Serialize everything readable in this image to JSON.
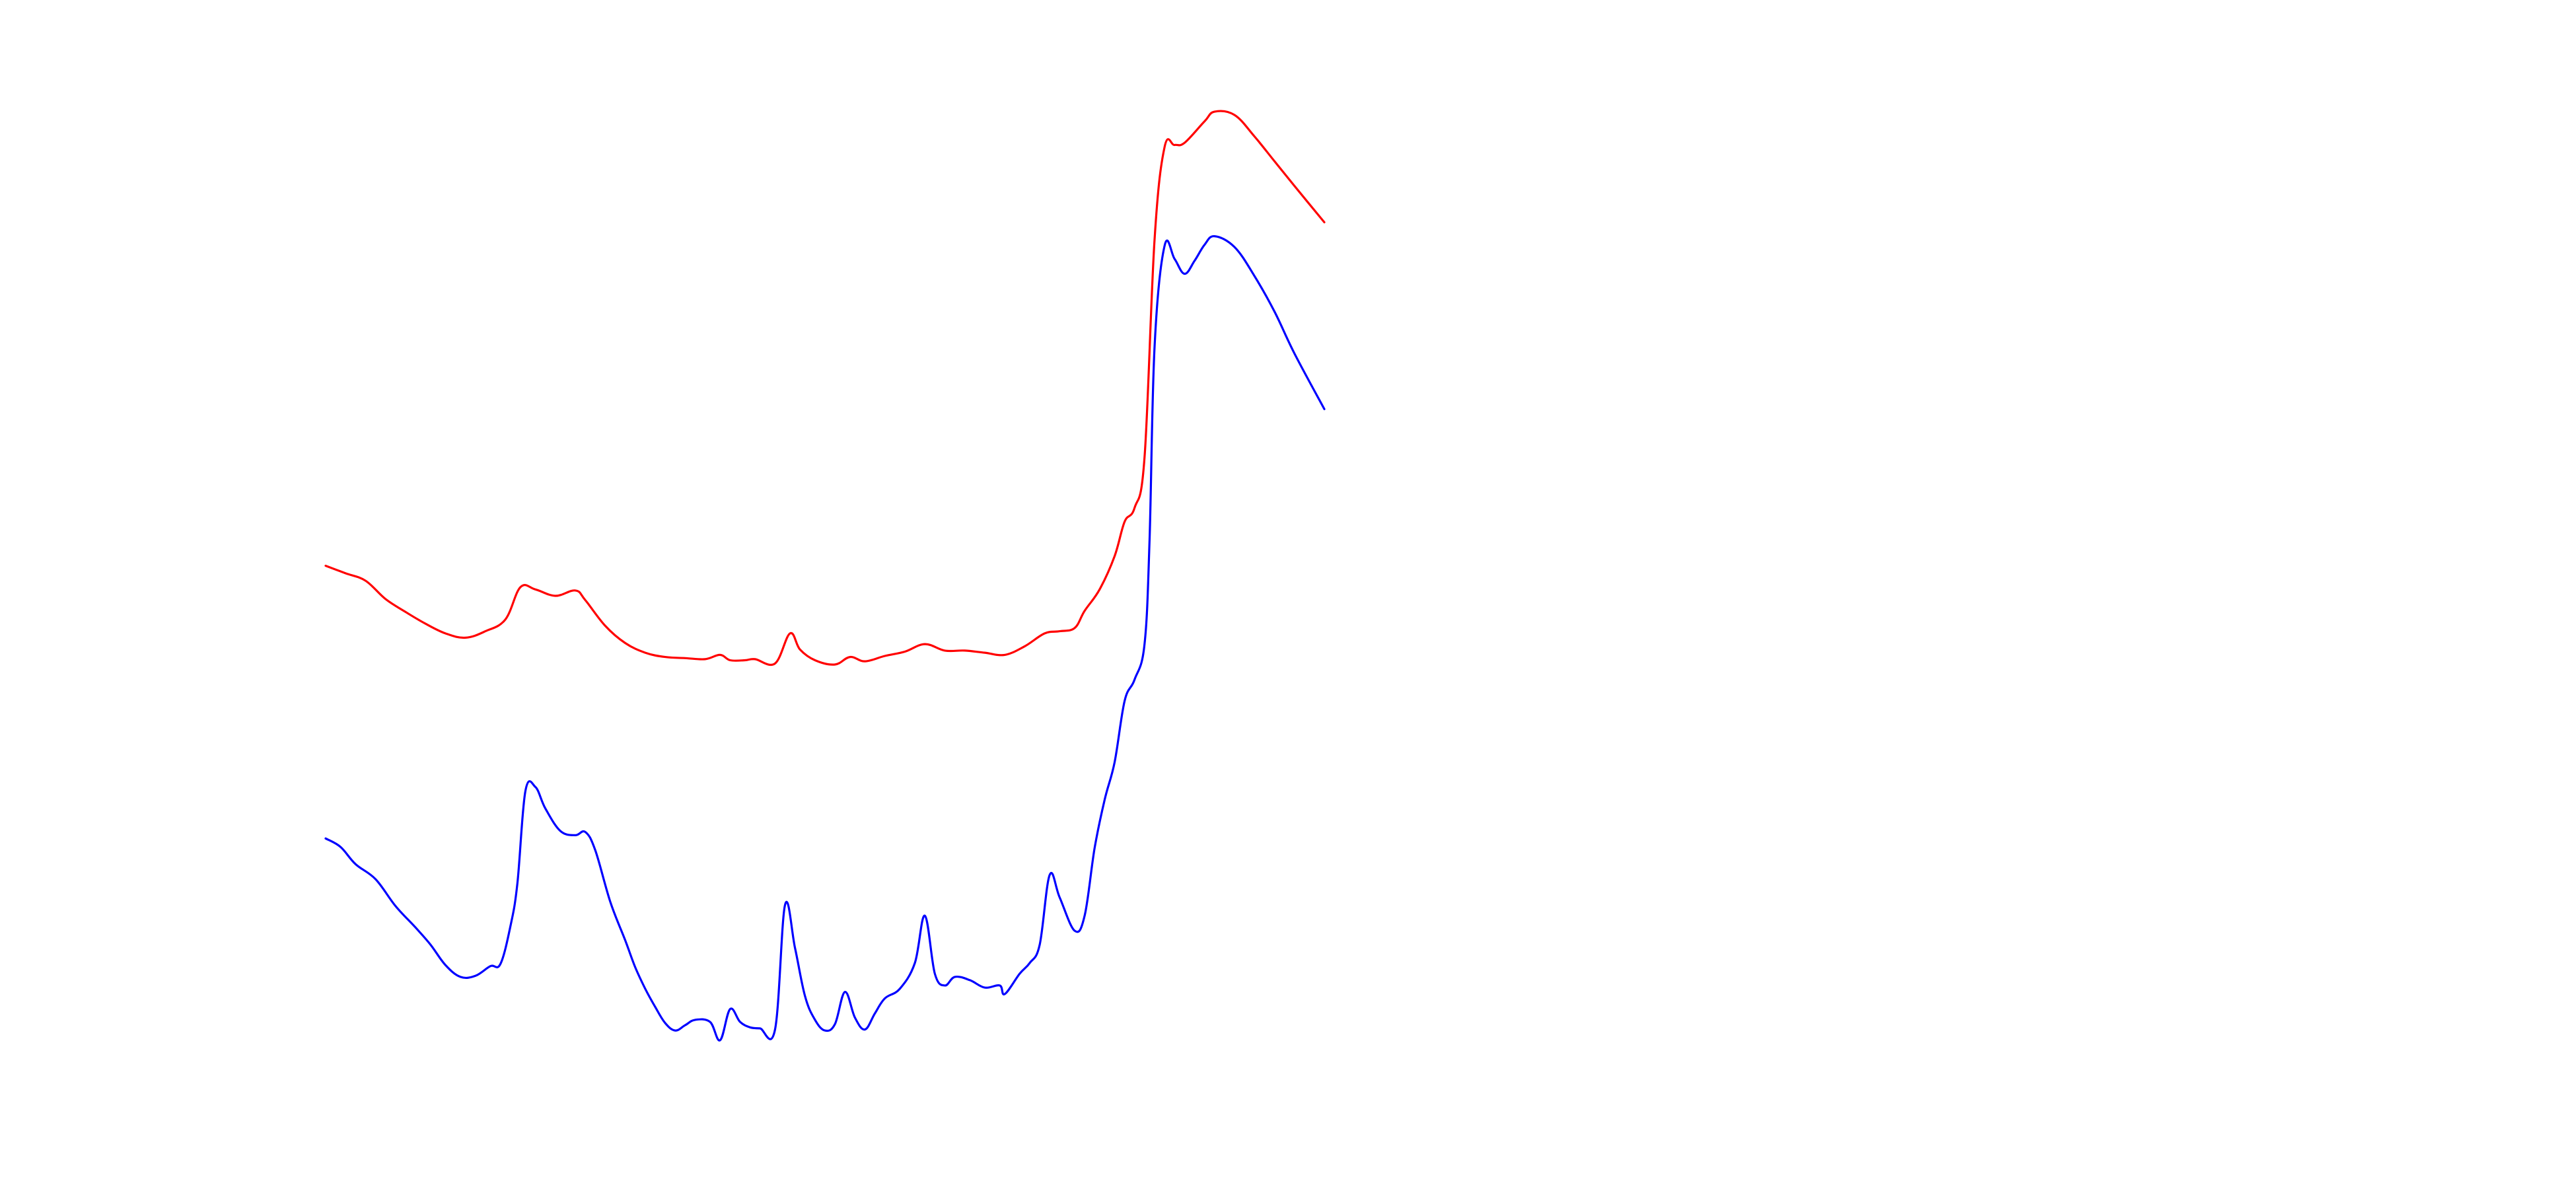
{
  "chart_data": {
    "type": "line",
    "title": "",
    "xlabel": "",
    "ylabel": "",
    "grid": false,
    "legend": "none",
    "axes_visible": false,
    "xlim": [
      0,
      100
    ],
    "ylim": [
      0,
      100
    ],
    "series": [
      {
        "color": "#ff0000",
        "points": [
          [
            0.0,
            59.6
          ],
          [
            2.0,
            58.9
          ],
          [
            4.0,
            58.2
          ],
          [
            6.0,
            56.5
          ],
          [
            8.0,
            55.3
          ],
          [
            10.0,
            54.2
          ],
          [
            12.0,
            53.3
          ],
          [
            14.0,
            52.9
          ],
          [
            16.0,
            53.5
          ],
          [
            18.0,
            54.6
          ],
          [
            19.5,
            57.6
          ],
          [
            21.0,
            57.4
          ],
          [
            23.0,
            56.8
          ],
          [
            25.0,
            57.3
          ],
          [
            26.0,
            56.4
          ],
          [
            28.0,
            54.0
          ],
          [
            30.0,
            52.4
          ],
          [
            32.0,
            51.5
          ],
          [
            34.0,
            51.1
          ],
          [
            36.0,
            51.0
          ],
          [
            38.0,
            50.9
          ],
          [
            39.5,
            51.3
          ],
          [
            40.5,
            50.8
          ],
          [
            42.0,
            50.8
          ],
          [
            43.0,
            50.9
          ],
          [
            45.0,
            50.5
          ],
          [
            46.5,
            53.3
          ],
          [
            47.5,
            51.8
          ],
          [
            49.0,
            50.8
          ],
          [
            51.0,
            50.4
          ],
          [
            52.5,
            51.1
          ],
          [
            54.0,
            50.7
          ],
          [
            56.0,
            51.2
          ],
          [
            58.0,
            51.6
          ],
          [
            60.0,
            52.3
          ],
          [
            62.0,
            51.7
          ],
          [
            64.0,
            51.7
          ],
          [
            66.0,
            51.5
          ],
          [
            68.0,
            51.3
          ],
          [
            70.0,
            52.1
          ],
          [
            72.0,
            53.3
          ],
          [
            73.5,
            53.5
          ],
          [
            75.0,
            53.8
          ],
          [
            76.0,
            55.4
          ],
          [
            77.5,
            57.4
          ],
          [
            79.0,
            60.5
          ],
          [
            80.0,
            63.7
          ],
          [
            81.0,
            65.0
          ],
          [
            82.0,
            69.7
          ],
          [
            83.0,
            90.0
          ],
          [
            84.0,
            98.6
          ],
          [
            85.0,
            98.8
          ],
          [
            86.0,
            99.0
          ],
          [
            88.0,
            101.0
          ],
          [
            89.0,
            101.9
          ],
          [
            91.0,
            101.6
          ],
          [
            93.0,
            99.6
          ],
          [
            95.0,
            97.3
          ],
          [
            97.0,
            95.0
          ],
          [
            100.0,
            91.6
          ]
        ]
      },
      {
        "color": "#0000ff",
        "points": [
          [
            0.0,
            34.2
          ],
          [
            1.5,
            33.4
          ],
          [
            3.0,
            31.8
          ],
          [
            5.0,
            30.4
          ],
          [
            7.0,
            27.9
          ],
          [
            9.0,
            25.9
          ],
          [
            10.5,
            24.3
          ],
          [
            12.0,
            22.4
          ],
          [
            13.5,
            21.3
          ],
          [
            15.0,
            21.4
          ],
          [
            16.5,
            22.3
          ],
          [
            17.5,
            22.5
          ],
          [
            18.5,
            26.0
          ],
          [
            19.2,
            30.0
          ],
          [
            20.0,
            38.6
          ],
          [
            21.0,
            39.0
          ],
          [
            22.0,
            37.0
          ],
          [
            23.5,
            34.9
          ],
          [
            25.0,
            34.5
          ],
          [
            26.0,
            34.8
          ],
          [
            27.0,
            33.1
          ],
          [
            28.5,
            28.3
          ],
          [
            30.0,
            24.7
          ],
          [
            31.0,
            22.2
          ],
          [
            32.0,
            20.2
          ],
          [
            33.0,
            18.5
          ],
          [
            34.0,
            17.0
          ],
          [
            35.0,
            16.3
          ],
          [
            36.0,
            16.8
          ],
          [
            37.0,
            17.3
          ],
          [
            38.5,
            17.1
          ],
          [
            39.5,
            15.4
          ],
          [
            40.5,
            18.3
          ],
          [
            41.5,
            17.1
          ],
          [
            42.5,
            16.6
          ],
          [
            43.5,
            16.5
          ],
          [
            45.0,
            16.4
          ],
          [
            46.0,
            28.0
          ],
          [
            47.0,
            24.0
          ],
          [
            48.0,
            19.5
          ],
          [
            49.0,
            17.3
          ],
          [
            50.0,
            16.3
          ],
          [
            51.0,
            16.9
          ],
          [
            52.0,
            19.9
          ],
          [
            53.0,
            17.5
          ],
          [
            54.0,
            16.4
          ],
          [
            55.0,
            17.9
          ],
          [
            56.0,
            19.3
          ],
          [
            57.5,
            20.2
          ],
          [
            59.0,
            22.6
          ],
          [
            60.0,
            27.0
          ],
          [
            61.0,
            21.6
          ],
          [
            62.0,
            20.5
          ],
          [
            63.0,
            21.3
          ],
          [
            64.5,
            21.0
          ],
          [
            66.0,
            20.3
          ],
          [
            67.5,
            20.5
          ],
          [
            68.0,
            19.7
          ],
          [
            69.5,
            21.6
          ],
          [
            70.5,
            22.6
          ],
          [
            71.5,
            24.3
          ],
          [
            72.5,
            30.8
          ],
          [
            73.5,
            28.7
          ],
          [
            75.0,
            25.6
          ],
          [
            76.0,
            27.0
          ],
          [
            77.0,
            33.3
          ],
          [
            78.0,
            37.8
          ],
          [
            79.0,
            41.3
          ],
          [
            80.0,
            47.0
          ],
          [
            81.0,
            49.0
          ],
          [
            82.0,
            52.3
          ],
          [
            82.5,
            62.0
          ],
          [
            83.0,
            80.0
          ],
          [
            84.0,
            89.4
          ],
          [
            85.0,
            88.2
          ],
          [
            86.0,
            86.8
          ],
          [
            87.0,
            88.0
          ],
          [
            88.0,
            89.5
          ],
          [
            89.0,
            90.3
          ],
          [
            91.0,
            89.3
          ],
          [
            93.0,
            86.6
          ],
          [
            95.0,
            83.3
          ],
          [
            97.0,
            79.4
          ],
          [
            100.0,
            74.2
          ]
        ]
      }
    ]
  }
}
